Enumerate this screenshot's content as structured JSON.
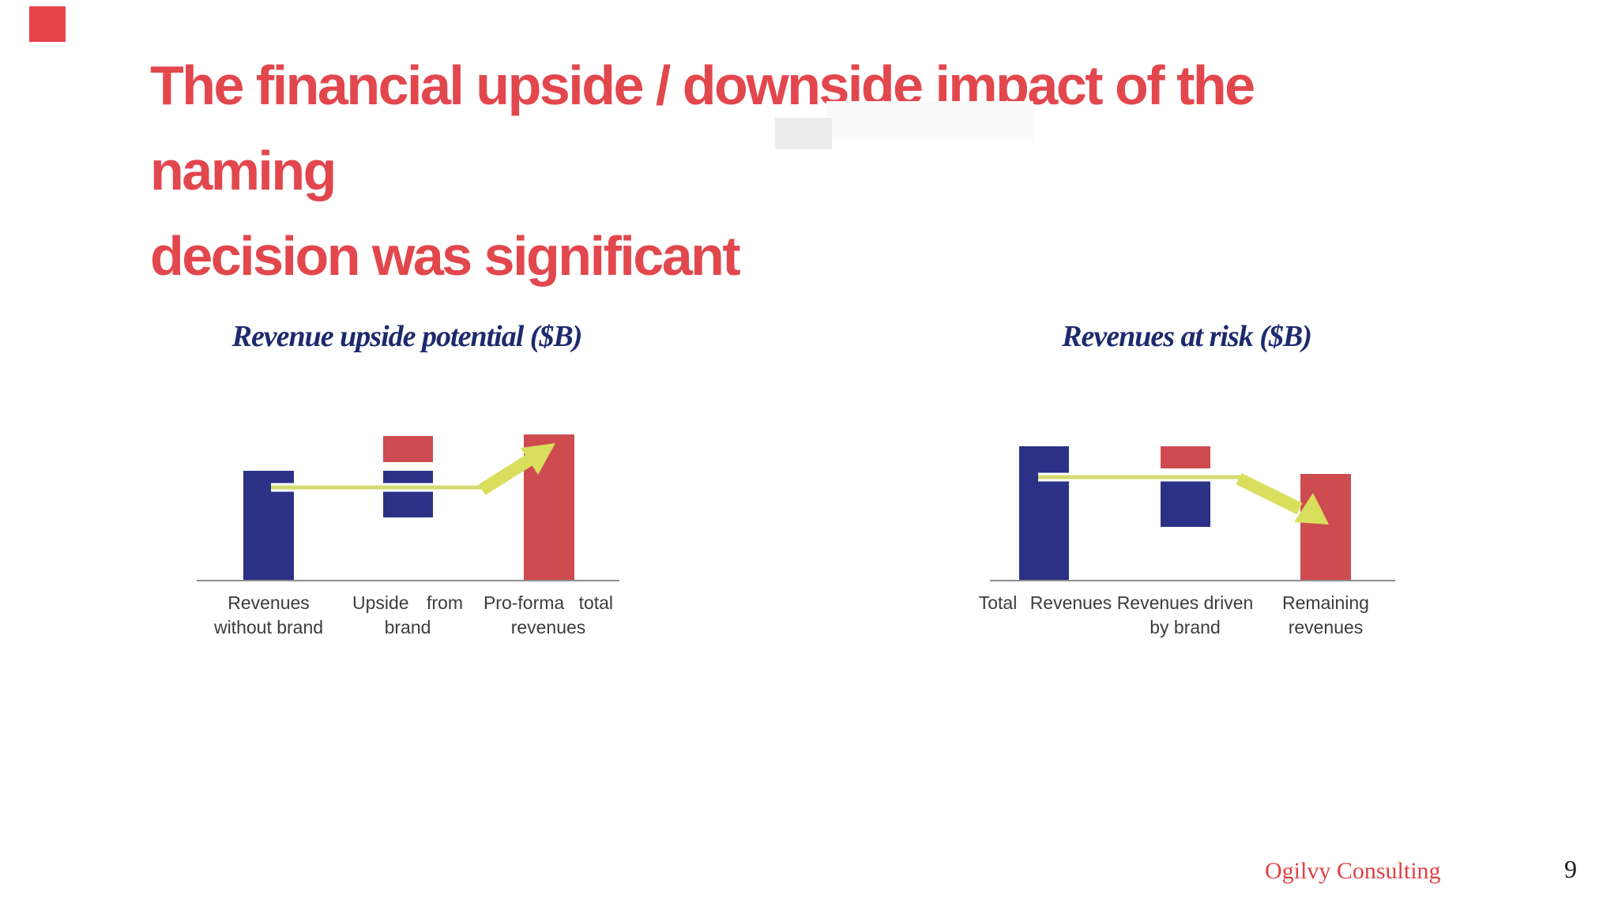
{
  "slide": {
    "title_line1": "The financial upside / downside impact of the naming",
    "title_line2": "decision was significant",
    "footer_brand": "Ogilvy Consulting",
    "page_number": "9"
  },
  "colors": {
    "title_red": "#E2474D",
    "corner_accent_red": "#E8424B",
    "bar_blue": "#2B3185",
    "bar_red": "#CE4B50",
    "chart_title_navy": "#1E2A6E",
    "arrow_line_green": "#D3DB70",
    "arrow_head_green": "#D9DF5C",
    "axis_gray": "#909090",
    "label_gray": "#3C3C3C",
    "brand_red": "#DF4146",
    "page_number_black": "#1B1B1B"
  },
  "left_chart": {
    "title": "Revenue upside potential ($B)",
    "labels": [
      {
        "line1": "Revenues",
        "line2": "without brand"
      },
      {
        "line1": "Upside from",
        "line2": "brand"
      },
      {
        "line1": "Pro-forma total",
        "line2": "revenues"
      }
    ]
  },
  "right_chart": {
    "title": "Revenues at risk ($B)",
    "labels": [
      {
        "line1": "Total Revenues",
        "line2": ""
      },
      {
        "line1": "Revenues driven",
        "line2": "by brand"
      },
      {
        "line1": "Remaining",
        "line2": "revenues"
      }
    ]
  },
  "chart_data": [
    {
      "type": "bar",
      "subtype": "waterfall-schematic",
      "title": "Revenue upside potential ($B)",
      "categories": [
        "Revenues without brand",
        "Upside from brand",
        "Pro-forma total revenues"
      ],
      "value_axis": "unlabeled relative units (pro-forma total = 100)",
      "grid": false,
      "legend": false,
      "bars": [
        {
          "label": "Revenues without brand",
          "segments": [
            {
              "color": "blue",
              "from": 0,
              "to": 75
            }
          ]
        },
        {
          "label": "Upside from brand",
          "segments": [
            {
              "color": "blue",
              "from": 43,
              "to": 75
            },
            {
              "color": "red",
              "from": 81,
              "to": 99
            }
          ]
        },
        {
          "label": "Pro-forma total revenues",
          "segments": [
            {
              "color": "red",
              "from": 0,
              "to": 100
            }
          ]
        }
      ],
      "annotation_arrow": "yellow-green arrow rising from first-bar level up to third bar top"
    },
    {
      "type": "bar",
      "subtype": "waterfall-schematic",
      "title": "Revenues at risk ($B)",
      "categories": [
        "Total Revenues",
        "Revenues driven by brand",
        "Remaining revenues"
      ],
      "value_axis": "unlabeled relative units (same scale as left chart)",
      "grid": false,
      "legend": false,
      "bars": [
        {
          "label": "Total Revenues",
          "segments": [
            {
              "color": "blue",
              "from": 0,
              "to": 92
            }
          ]
        },
        {
          "label": "Revenues driven by brand",
          "segments": [
            {
              "color": "blue",
              "from": 37,
              "to": 68
            },
            {
              "color": "red",
              "from": 77,
              "to": 92
            }
          ]
        },
        {
          "label": "Remaining revenues",
          "segments": [
            {
              "color": "red",
              "from": 0,
              "to": 73
            }
          ]
        }
      ],
      "annotation_arrow": "yellow-green arrow falling from first-bar level down to third bar top"
    }
  ]
}
